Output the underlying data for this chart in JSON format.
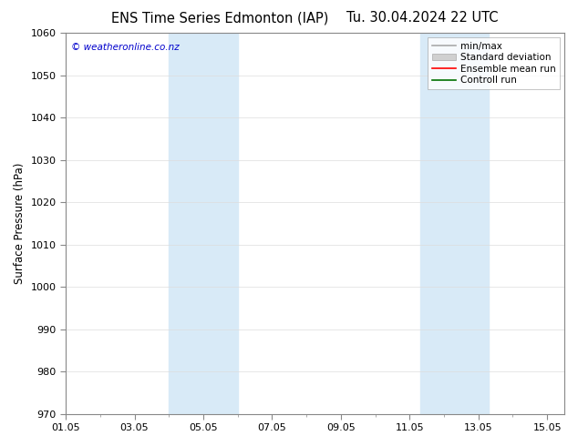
{
  "title": "ENS Time Series Edmonton (IAP)",
  "title2": "Tu. 30.04.2024 22 UTC",
  "ylabel": "Surface Pressure (hPa)",
  "ylim": [
    970,
    1060
  ],
  "yticks": [
    970,
    980,
    990,
    1000,
    1010,
    1020,
    1030,
    1040,
    1050,
    1060
  ],
  "xtick_labels": [
    "01.05",
    "03.05",
    "05.05",
    "07.05",
    "09.05",
    "11.05",
    "13.05",
    "15.05"
  ],
  "xtick_positions": [
    1,
    3,
    5,
    7,
    9,
    11,
    13,
    15
  ],
  "shaded_regions": [
    {
      "xmin": 4.0,
      "xmax": 6.0,
      "color": "#d8eaf7"
    },
    {
      "xmin": 11.3,
      "xmax": 13.3,
      "color": "#d8eaf7"
    }
  ],
  "legend_entries": [
    {
      "label": "min/max",
      "color": "#aaaaaa",
      "lw": 1.2,
      "ls": "-"
    },
    {
      "label": "Standard deviation",
      "facecolor": "#d0d0d0",
      "edgecolor": "#aaaaaa"
    },
    {
      "label": "Ensemble mean run",
      "color": "#ff0000",
      "lw": 1.2,
      "ls": "-"
    },
    {
      "label": "Controll run",
      "color": "#007000",
      "lw": 1.2,
      "ls": "-"
    }
  ],
  "watermark": "© weatheronline.co.nz",
  "watermark_color": "#0000cc",
  "bg_color": "#ffffff",
  "plot_bg_color": "#ffffff",
  "xmin": 1,
  "xmax": 15.5,
  "title_fontsize": 10.5,
  "axis_label_fontsize": 8.5,
  "tick_fontsize": 8
}
